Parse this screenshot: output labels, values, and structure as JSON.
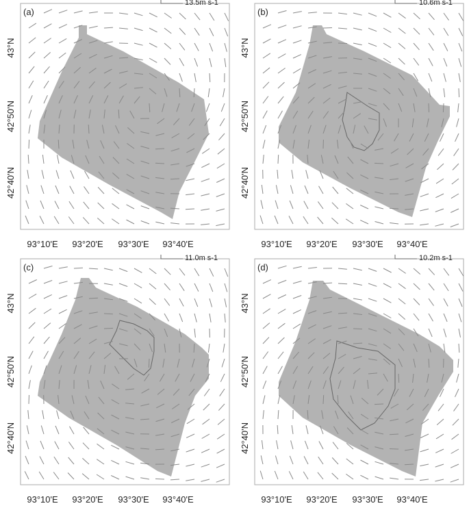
{
  "panels": [
    {
      "label": "(a)",
      "reference": "13.5m s-1"
    },
    {
      "label": "(b)",
      "reference": "10.6m s-1"
    },
    {
      "label": "(c)",
      "reference": "11.0m s-1"
    },
    {
      "label": "(d)",
      "reference": "10.2m s-1"
    }
  ],
  "x_ticks": [
    "93°10'E",
    "93°20'E",
    "93°30'E",
    "93°40'E"
  ],
  "y_ticks": [
    "43°N",
    "42°50'N",
    "42°40'N"
  ]
}
